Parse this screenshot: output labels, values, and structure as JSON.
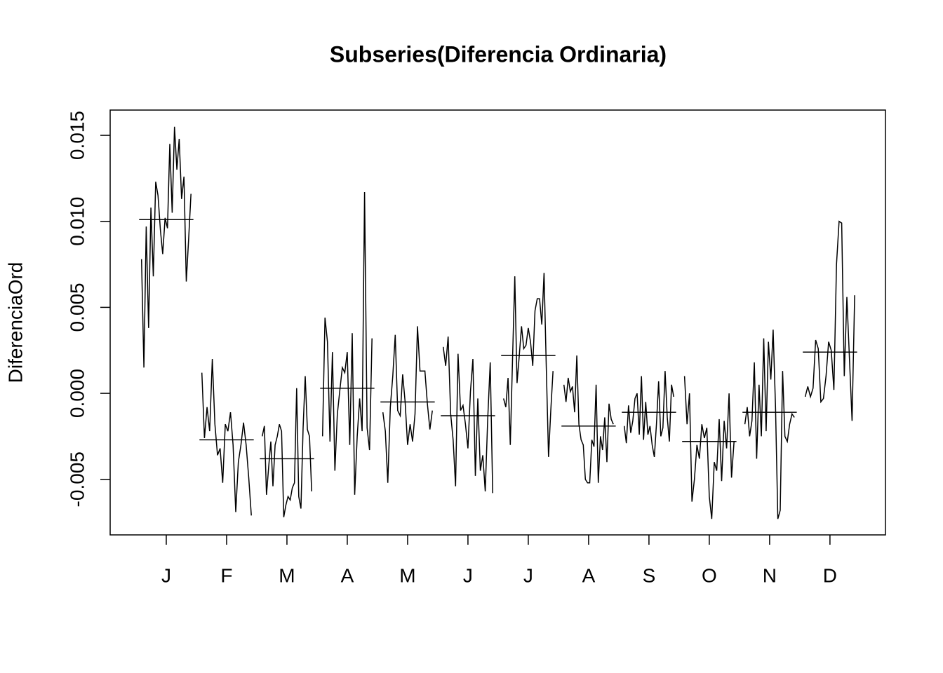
{
  "chart_data": {
    "type": "monthplot",
    "title": "Subseries(Diferencia Ordinaria)",
    "y_label": "DiferenciaOrd",
    "categories": [
      "J",
      "F",
      "M",
      "A",
      "M",
      "J",
      "J",
      "A",
      "S",
      "O",
      "N",
      "D"
    ],
    "xlim": [
      0.07,
      12.92
    ],
    "xticks": [
      1,
      2,
      3,
      4,
      5,
      6,
      7,
      8,
      9,
      10,
      11,
      12
    ],
    "ylim": [
      -0.00823,
      0.01647
    ],
    "yticks": [
      -0.005,
      {
        "value": 0,
        "label": "0.000"
      },
      0.005,
      {
        "value": 0.01,
        "label": "0.010"
      },
      0.015
    ],
    "color": "#000000",
    "subseries": [
      {
        "mean": 0.0101,
        "values": [
          0.0078,
          0.0015,
          0.0097,
          0.0038,
          0.0108,
          0.0068,
          0.0123,
          0.0115,
          0.0095,
          0.0081,
          0.0102,
          0.0096,
          0.0145,
          0.0105,
          0.0155,
          0.013,
          0.0148,
          0.0113,
          0.0126,
          0.0065,
          0.009,
          0.0116
        ]
      },
      {
        "mean": -0.0027,
        "values": [
          0.0012,
          -0.0026,
          -0.0008,
          -0.0022,
          0.002,
          -0.0018,
          -0.0036,
          -0.0032,
          -0.0052,
          -0.0018,
          -0.0022,
          -0.0011,
          -0.003,
          -0.0069,
          -0.004,
          -0.003,
          -0.0017,
          -0.003,
          -0.0049,
          -0.0071
        ]
      },
      {
        "mean": -0.0038,
        "values": [
          -0.0025,
          -0.0019,
          -0.0059,
          -0.0043,
          -0.0028,
          -0.0054,
          -0.003,
          -0.0025,
          -0.0018,
          -0.0022,
          -0.0072,
          -0.0065,
          -0.006,
          -0.0062,
          -0.0055,
          -0.0052,
          0.0003,
          -0.006,
          -0.0067,
          -0.002,
          0.001,
          -0.0021,
          -0.0025,
          -0.0057
        ]
      },
      {
        "mean": 0.0003,
        "values": [
          -0.0025,
          0.0044,
          0.003,
          -0.0028,
          0.0024,
          -0.0045,
          -0.0012,
          0.0002,
          0.0015,
          0.0012,
          0.0024,
          -0.003,
          0.0035,
          -0.0059,
          -0.0025,
          -0.0003,
          -0.0022,
          0.0117,
          -0.002,
          -0.0033,
          0.0032
        ]
      },
      {
        "mean": -0.0005,
        "values": [
          -0.0011,
          -0.0022,
          -0.0052,
          -0.0008,
          0.001,
          0.0034,
          -0.001,
          -0.0013,
          0.0011,
          -0.0005,
          -0.003,
          -0.0018,
          -0.0028,
          -0.0012,
          0.0039,
          0.0013,
          0.0013,
          0.0013,
          -0.0006,
          -0.0021,
          -0.001
        ]
      },
      {
        "mean": -0.0013,
        "values": [
          0.0027,
          0.0016,
          0.0033,
          -0.0012,
          -0.0027,
          -0.0054,
          0.0023,
          -0.001,
          -0.0007,
          -0.0018,
          -0.0032,
          0.0001,
          0.002,
          -0.0048,
          -0.0003,
          -0.0045,
          -0.0036,
          -0.0057,
          -0.0015,
          0.0018,
          -0.0058
        ]
      },
      {
        "mean": 0.0022,
        "values": [
          -0.0003,
          -0.0008,
          0.0009,
          -0.003,
          0.002,
          0.0068,
          0.0006,
          0.0022,
          0.0039,
          0.0026,
          0.0028,
          0.0038,
          0.003,
          0.0016,
          0.0048,
          0.0055,
          0.0055,
          0.004,
          0.007,
          0.0015,
          -0.0037,
          -0.001,
          0.0013
        ]
      },
      {
        "mean": -0.0019,
        "values": [
          0.0005,
          -0.0005,
          0.0009,
          0.0001,
          0.0004,
          -0.0011,
          0.0022,
          -0.0018,
          -0.0027,
          -0.003,
          -0.005,
          -0.0052,
          -0.0052,
          -0.0027,
          -0.0031,
          0.0005,
          -0.0052,
          -0.0025,
          -0.0033,
          -0.0014,
          -0.004,
          -0.0006,
          -0.0015,
          -0.0018
        ]
      },
      {
        "mean": -0.0011,
        "values": [
          -0.0019,
          -0.0029,
          -0.0007,
          -0.0023,
          -0.0016,
          -0.0003,
          0.0,
          -0.0024,
          0.001,
          -0.0027,
          -0.0005,
          -0.0024,
          -0.0019,
          -0.003,
          -0.0037,
          -0.0018,
          0.0007,
          -0.0025,
          -0.002,
          0.0013,
          -0.0014,
          -0.0028,
          0.0005,
          -0.0002
        ]
      },
      {
        "mean": -0.0028,
        "values": [
          0.001,
          -0.0018,
          0.0,
          -0.0063,
          -0.005,
          -0.003,
          -0.0038,
          -0.0018,
          -0.0026,
          -0.002,
          -0.006,
          -0.0073,
          -0.004,
          -0.0045,
          -0.0015,
          -0.0051,
          -0.0016,
          -0.0032,
          0.0,
          -0.0049,
          -0.0028
        ]
      },
      {
        "mean": -0.0011,
        "values": [
          -0.0018,
          -0.0008,
          -0.0025,
          -0.0016,
          0.0018,
          -0.0038,
          0.0005,
          -0.0025,
          0.0032,
          -0.0022,
          0.003,
          0.0008,
          0.0037,
          -0.0008,
          -0.0073,
          -0.0068,
          0.0013,
          -0.0025,
          -0.0028,
          -0.0018,
          -0.0012,
          -0.0014
        ]
      },
      {
        "mean": 0.0024,
        "values": [
          -0.0002,
          0.0004,
          -0.0002,
          0.0003,
          0.0031,
          0.0026,
          -0.0005,
          -0.0003,
          0.001,
          0.003,
          0.0025,
          0.0002,
          0.0075,
          0.01,
          0.0099,
          0.001,
          0.0056,
          0.002,
          -0.0016,
          0.0057
        ]
      }
    ]
  }
}
